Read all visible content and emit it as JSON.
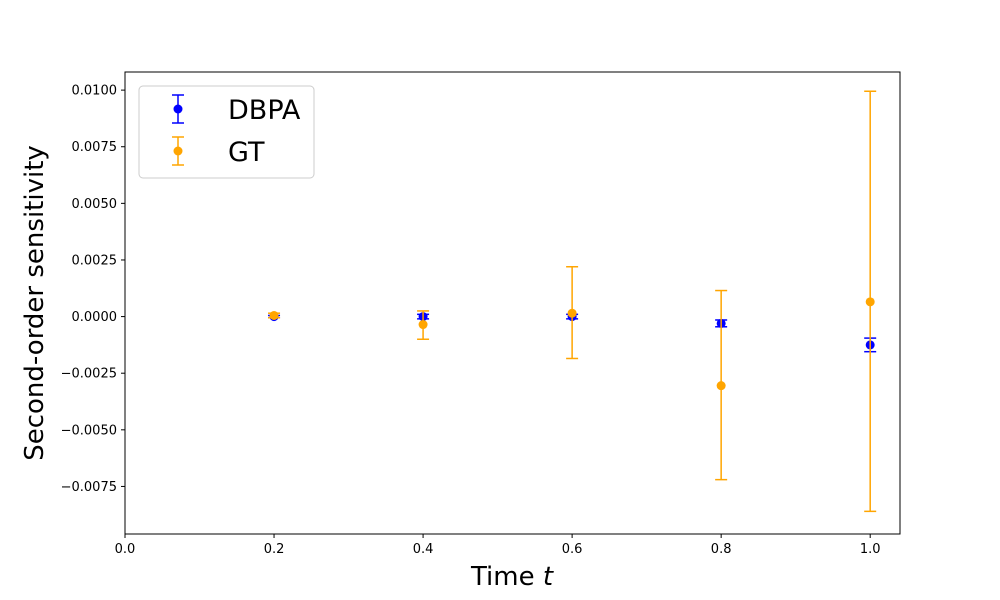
{
  "chart_data": {
    "type": "scatter",
    "xlabel": "Time",
    "xlabel_var": "t",
    "ylabel": "Second-order sensitivity",
    "xlim": [
      0.0,
      1.04
    ],
    "ylim": [
      -0.0096,
      0.0108
    ],
    "x_ticks": [
      0.0,
      0.2,
      0.4,
      0.6,
      0.8,
      1.0
    ],
    "x_tick_labels": [
      "0.0",
      "0.2",
      "0.4",
      "0.6",
      "0.8",
      "1.0"
    ],
    "y_ticks": [
      -0.0075,
      -0.005,
      -0.0025,
      0.0,
      0.0025,
      0.005,
      0.0075,
      0.01
    ],
    "y_tick_labels": [
      "−0.0075",
      "−0.0050",
      "−0.0025",
      "0.0000",
      "0.0025",
      "0.0050",
      "0.0075",
      "0.0100"
    ],
    "grid": false,
    "legend_position": "top-left",
    "series": [
      {
        "name": "DBPA",
        "color": "#0000ff",
        "x": [
          0.2,
          0.4,
          0.6,
          0.8,
          1.0
        ],
        "y": [
          0.0,
          0.0,
          0.0,
          -0.0003,
          -0.00125
        ],
        "err_low": [
          -5e-05,
          -0.0001,
          -0.0001,
          -0.00045,
          -0.00155
        ],
        "err_high": [
          5e-05,
          0.0001,
          0.0001,
          -0.00015,
          -0.00095
        ]
      },
      {
        "name": "GT",
        "color": "#ffa500",
        "x": [
          0.2,
          0.4,
          0.6,
          0.8,
          1.0
        ],
        "y": [
          5e-05,
          -0.00035,
          0.00015,
          -0.00305,
          0.00065
        ],
        "err_low": [
          -5e-05,
          -0.001,
          -0.00185,
          -0.0072,
          -0.0086
        ],
        "err_high": [
          0.00015,
          0.00025,
          0.0022,
          0.00115,
          0.00995
        ]
      }
    ]
  }
}
